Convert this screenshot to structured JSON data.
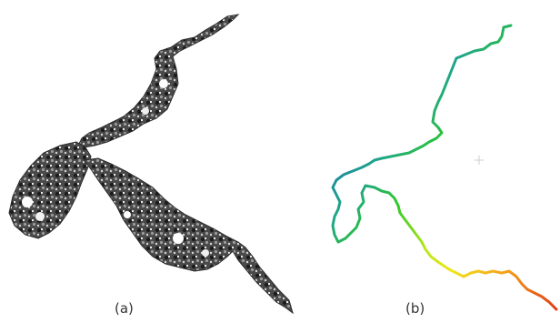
{
  "captions": {
    "a": "(a)",
    "b": "(b)"
  },
  "panel_a": {
    "description_color": "#555555",
    "texture_colors": [
      "#1a1a1a",
      "#3a3a3a",
      "#5c5c5c",
      "#8a8a8a",
      "#bdbdbd",
      "#ffffff"
    ]
  },
  "panel_b": {
    "gradient_stops": [
      "#0a16c8",
      "#1e6fb8",
      "#1fa58a",
      "#2ec82a",
      "#b8e61e",
      "#f0e61a",
      "#f5a01a",
      "#e23a18"
    ],
    "marker_color": "#cccccc"
  }
}
